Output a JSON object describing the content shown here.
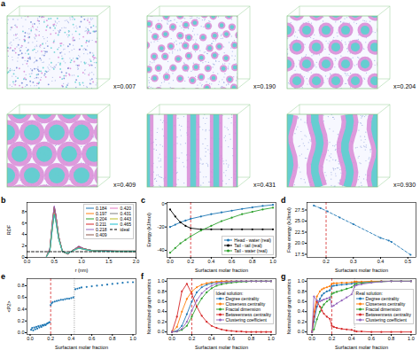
{
  "chart_data": [
    {
      "type": "snapshots",
      "title": "a",
      "labels": [
        "x=0.007",
        "x=0.190",
        "x=0.204",
        "x=0.409",
        "x=0.431",
        "x=0.930"
      ]
    },
    {
      "type": "line",
      "title": "b",
      "x_label": "r (nm)",
      "y_label": "RDF",
      "x": [
        0,
        0.35,
        0.42,
        0.47,
        0.5,
        0.53,
        0.58,
        0.65,
        0.75,
        0.85,
        0.95,
        1.05,
        1.2,
        1.4,
        1.6,
        1.8,
        2.0
      ],
      "series": [
        {
          "name": "0.184",
          "color": "#1f77b4",
          "line_style": "solid",
          "values": [
            0,
            0,
            1.4,
            6.2,
            8.5,
            7.1,
            3.6,
            1.1,
            0.6,
            1.3,
            1.8,
            1.5,
            1.2,
            1.15,
            1.1,
            1.1,
            1.1
          ]
        },
        {
          "name": "0.197",
          "color": "#ff7f0e",
          "line_style": "solid",
          "values": [
            0,
            0,
            1.5,
            6.4,
            8.7,
            7.2,
            3.6,
            1.0,
            0.6,
            1.3,
            1.9,
            1.5,
            1.2,
            1.15,
            1.1,
            1.1,
            1.1
          ]
        },
        {
          "name": "0.204",
          "color": "#2ca02c",
          "line_style": "solid",
          "values": [
            0,
            0,
            1.5,
            6.5,
            8.8,
            7.3,
            3.7,
            1.0,
            0.6,
            1.3,
            1.9,
            1.5,
            1.2,
            1.15,
            1.1,
            1.1,
            1.1
          ]
        },
        {
          "name": "0.211",
          "color": "#d62728",
          "line_style": "solid",
          "values": [
            0,
            0,
            1.6,
            6.6,
            8.9,
            7.3,
            3.7,
            1.0,
            0.6,
            1.3,
            1.9,
            1.5,
            1.2,
            1.15,
            1.1,
            1.1,
            1.1
          ]
        },
        {
          "name": "0.218",
          "color": "#9467bd",
          "line_style": "solid",
          "values": [
            0,
            0,
            1.6,
            6.7,
            9.0,
            7.4,
            3.7,
            1.0,
            0.6,
            1.3,
            2.0,
            1.5,
            1.2,
            1.15,
            1.1,
            1.1,
            1.1
          ]
        },
        {
          "name": "0.409",
          "color": "#8c564b",
          "line_style": "solid",
          "values": [
            0,
            0,
            1.3,
            5.8,
            7.9,
            6.6,
            3.4,
            1.0,
            0.7,
            1.3,
            1.7,
            1.4,
            1.2,
            1.1,
            1.1,
            1.05,
            1.05
          ]
        },
        {
          "name": "0.420",
          "color": "#e377c2",
          "line_style": "solid",
          "values": [
            0,
            0,
            1.3,
            5.7,
            7.8,
            6.5,
            3.4,
            1.0,
            0.7,
            1.3,
            1.7,
            1.4,
            1.2,
            1.1,
            1.1,
            1.05,
            1.05
          ]
        },
        {
          "name": "0.431",
          "color": "#7f7f7f",
          "line_style": "solid",
          "values": [
            0,
            0,
            1.2,
            5.6,
            7.7,
            6.4,
            3.3,
            1.0,
            0.7,
            1.3,
            1.7,
            1.4,
            1.2,
            1.1,
            1.1,
            1.05,
            1.05
          ]
        },
        {
          "name": "0.443",
          "color": "#bcbd22",
          "line_style": "solid",
          "values": [
            0,
            0,
            1.2,
            5.5,
            7.6,
            6.3,
            3.3,
            1.0,
            0.7,
            1.2,
            1.6,
            1.4,
            1.15,
            1.1,
            1.05,
            1.05,
            1.05
          ]
        },
        {
          "name": "0.465",
          "color": "#17becf",
          "line_style": "solid",
          "values": [
            0,
            0,
            1.2,
            5.4,
            7.5,
            6.2,
            3.2,
            1.0,
            0.7,
            1.2,
            1.6,
            1.4,
            1.15,
            1.1,
            1.05,
            1.05,
            1.05
          ]
        },
        {
          "name": "ideal",
          "color": "#000000",
          "line_style": "dashed",
          "values": [
            1,
            1,
            1,
            1,
            1,
            1,
            1,
            1,
            1,
            1,
            1,
            1,
            1,
            1,
            1,
            1,
            1
          ]
        }
      ],
      "xlim": [
        0,
        2.0
      ],
      "ylim": [
        0,
        9.6
      ],
      "xticks": [
        {
          "value": 0,
          "label": "0.0"
        },
        0.5,
        {
          "value": 1,
          "label": "1.0"
        },
        1.5,
        {
          "value": 2,
          "label": "2.0"
        }
      ],
      "yticks": [
        0,
        2,
        4,
        6,
        8
      ],
      "legend": "upper right"
    },
    {
      "type": "line",
      "title": "c",
      "x_label": "Surfactant molar fraction",
      "y_label": "Energy (kJ/mol)",
      "x": [
        0,
        0.05,
        0.1,
        0.15,
        0.2,
        0.3,
        0.4,
        0.5,
        0.6,
        0.7,
        0.8,
        0.9,
        1.0
      ],
      "series": [
        {
          "name": "Head - water (real)",
          "color": "#1f77b4",
          "marker": "dot",
          "line_style": "solid",
          "values": [
            -20,
            -18,
            -16,
            -14.5,
            -13,
            -11,
            -9,
            -7.5,
            -6,
            -4.5,
            -3.2,
            -2,
            -1
          ]
        },
        {
          "name": "Tail - tail (real)",
          "color": "#000000",
          "marker": "dot",
          "line_style": "solid",
          "values": [
            -5,
            -11,
            -16,
            -19,
            -21,
            -22,
            -22,
            -22,
            -22,
            -22,
            -22,
            -22,
            -22
          ]
        },
        {
          "name": "Tail - water (real)",
          "color": "#2ca02c",
          "marker": "dot",
          "line_style": "solid",
          "values": [
            -42,
            -38,
            -34,
            -31,
            -28,
            -23,
            -19,
            -15,
            -12,
            -9,
            -7,
            -5,
            -3.5
          ]
        }
      ],
      "xlim": [
        -0.03,
        1.03
      ],
      "ylim": [
        -46,
        1
      ],
      "xticks": [
        {
          "value": 0,
          "label": "0.0"
        },
        0.2,
        0.4,
        0.6,
        0.8,
        {
          "value": 1,
          "label": "1.0"
        }
      ],
      "yticks": [
        -40,
        -20,
        0
      ],
      "vlines": [
        {
          "x": 0.2,
          "color": "#d62728",
          "line_style": "dashed"
        }
      ],
      "legend": "lower right"
    },
    {
      "type": "line",
      "title": "d",
      "x_label": "Surfactant molar fraction",
      "y_label": "Free energy (kJ/mol)",
      "x": [
        0.155,
        0.18,
        0.205,
        0.25,
        0.3,
        0.4,
        0.43,
        0.44,
        0.51
      ],
      "series": [
        {
          "color": "#1f77b4",
          "marker": "dot",
          "line_style": "dashed",
          "values": [
            28.5,
            27.9,
            27.2,
            25.8,
            24.3,
            21.2,
            20.6,
            20.3,
            17.4
          ]
        }
      ],
      "xlim": [
        0.13,
        0.53
      ],
      "ylim": [
        16.8,
        29.2
      ],
      "xticks": [
        0.2,
        0.3,
        0.4,
        0.5
      ],
      "yticks": [
        17.5,
        {
          "value": 20,
          "label": "20.0"
        },
        22.5,
        {
          "value": 25,
          "label": "25.0"
        },
        27.5
      ],
      "vlines": [
        {
          "x": 0.2,
          "color": "#d62728",
          "line_style": "dashed"
        }
      ]
    },
    {
      "type": "scatter",
      "title": "e",
      "x_label": "Surfactant molar fraction",
      "y_label": "<P2>",
      "x": [
        0.01,
        0.02,
        0.03,
        0.04,
        0.05,
        0.06,
        0.07,
        0.08,
        0.09,
        0.1,
        0.11,
        0.12,
        0.13,
        0.14,
        0.15,
        0.16,
        0.17,
        0.18,
        0.19,
        0.2,
        0.21,
        0.22,
        0.24,
        0.26,
        0.28,
        0.3,
        0.32,
        0.34,
        0.36,
        0.38,
        0.4,
        0.42,
        0.44,
        0.46,
        0.48,
        0.5,
        0.55,
        0.6,
        0.65,
        0.7,
        0.75,
        0.8,
        0.85,
        0.9,
        0.95,
        1.0
      ],
      "series": [
        {
          "color": "#1f77b4",
          "marker": "dot",
          "values": [
            0.05,
            0.08,
            0.04,
            0.09,
            0.06,
            0.1,
            0.07,
            0.11,
            0.09,
            0.12,
            0.1,
            0.13,
            0.12,
            0.14,
            0.13,
            0.15,
            0.16,
            0.17,
            0.18,
            0.47,
            0.5,
            0.52,
            0.53,
            0.54,
            0.55,
            0.56,
            0.56,
            0.57,
            0.58,
            0.58,
            0.59,
            0.6,
            0.74,
            0.75,
            0.76,
            0.77,
            0.78,
            0.79,
            0.8,
            0.81,
            0.82,
            0.83,
            0.84,
            0.85,
            0.86,
            0.86
          ]
        }
      ],
      "xlim": [
        -0.03,
        1.03
      ],
      "ylim": [
        -0.03,
        0.92
      ],
      "xticks": [
        {
          "value": 0,
          "label": "0.0"
        },
        0.2,
        0.4,
        0.6,
        0.8,
        {
          "value": 1,
          "label": "1.0"
        }
      ],
      "yticks": [
        {
          "value": 0,
          "label": "0.0"
        },
        0.2,
        0.4,
        0.6,
        0.8
      ],
      "vlines": [
        {
          "x": 0.2,
          "color": "#d62728",
          "line_style": "dashed"
        },
        {
          "x": 0.43,
          "color": "#7f7f7f",
          "line_style": "dotted"
        }
      ]
    },
    {
      "type": "line",
      "title": "f",
      "x_label": "Surfactant molar fraction",
      "y_label": "Normalized graph metrics",
      "legend_title": "Ideal solution:",
      "x": [
        0,
        0.05,
        0.1,
        0.15,
        0.2,
        0.25,
        0.3,
        0.35,
        0.4,
        0.45,
        0.5,
        0.55,
        0.6,
        0.65,
        0.7,
        0.75,
        0.8,
        0.85,
        0.9,
        0.95,
        1.0
      ],
      "series": [
        {
          "name": "Degree centrality",
          "color": "#1f77b4",
          "marker": "dot",
          "line_style": "solid",
          "values": [
            0,
            0.02,
            0.12,
            0.35,
            0.6,
            0.78,
            0.88,
            0.93,
            0.96,
            0.98,
            0.99,
            1,
            1,
            1,
            1,
            1,
            1,
            1,
            1,
            1,
            1
          ]
        },
        {
          "name": "Closeness centrality",
          "color": "#ff7f0e",
          "marker": "dot",
          "line_style": "solid",
          "values": [
            0,
            0.1,
            0.4,
            0.65,
            0.8,
            0.88,
            0.93,
            0.96,
            0.98,
            0.99,
            1,
            1,
            1,
            1,
            1,
            1,
            1,
            1,
            1,
            1,
            1
          ]
        },
        {
          "name": "Fractal dimension",
          "color": "#2ca02c",
          "marker": "dot",
          "line_style": "solid",
          "values": [
            0,
            0.01,
            0.04,
            0.12,
            0.3,
            0.5,
            0.66,
            0.78,
            0.86,
            0.91,
            0.94,
            0.96,
            0.97,
            0.98,
            0.99,
            0.99,
            1,
            1,
            1,
            1,
            1
          ]
        },
        {
          "name": "Betweenness centrality",
          "color": "#d62728",
          "marker": "dot",
          "line_style": "solid",
          "values": [
            0,
            0.3,
            0.8,
            0.95,
            0.75,
            0.5,
            0.32,
            0.2,
            0.12,
            0.08,
            0.05,
            0.03,
            0.02,
            0.01,
            0.01,
            0,
            0,
            0,
            0,
            0,
            0
          ]
        },
        {
          "name": "Clustering coefficient",
          "color": "#9467bd",
          "marker": "dot",
          "line_style": "solid",
          "values": [
            0,
            0.01,
            0.06,
            0.2,
            0.42,
            0.62,
            0.76,
            0.85,
            0.91,
            0.95,
            0.97,
            0.98,
            0.99,
            1,
            1,
            1,
            1,
            1,
            1,
            1,
            1
          ]
        }
      ],
      "xlim": [
        -0.05,
        1.05
      ],
      "ylim": [
        -0.05,
        1.05
      ],
      "xticks": [
        {
          "value": 0,
          "label": "0.0"
        },
        0.2,
        0.4,
        0.6,
        0.8,
        {
          "value": 1,
          "label": "1.0"
        }
      ],
      "yticks": [
        {
          "value": 0,
          "label": "0.0"
        },
        0.2,
        0.4,
        0.6,
        0.8,
        {
          "value": 1,
          "label": "1.0"
        }
      ],
      "vlines": [
        {
          "x": 0.2,
          "color": "#d62728",
          "line_style": "dashed"
        }
      ],
      "legend": "center right"
    },
    {
      "type": "line",
      "title": "g",
      "x_label": "Surfactant molar fraction",
      "y_label": "Normalized graph metrics",
      "legend_title": "Real solution:",
      "x": [
        0,
        0.02,
        0.05,
        0.08,
        0.1,
        0.12,
        0.15,
        0.18,
        0.2,
        0.22,
        0.25,
        0.3,
        0.35,
        0.4,
        0.43,
        0.45,
        0.5,
        0.6,
        0.7,
        0.8,
        0.9,
        1.0
      ],
      "series": [
        {
          "name": "Degree centrality",
          "color": "#1f77b4",
          "marker": "dot",
          "line_style": "solid",
          "values": [
            0,
            0.2,
            0.5,
            0.65,
            0.72,
            0.76,
            0.8,
            0.82,
            0.9,
            0.91,
            0.92,
            0.93,
            0.94,
            0.95,
            0.97,
            0.98,
            0.98,
            0.99,
            1,
            1,
            1,
            1
          ]
        },
        {
          "name": "Closeness centrality",
          "color": "#ff7f0e",
          "marker": "dot",
          "line_style": "solid",
          "values": [
            0,
            0.4,
            0.7,
            0.8,
            0.84,
            0.86,
            0.88,
            0.9,
            0.95,
            0.96,
            0.96,
            0.97,
            0.97,
            0.98,
            0.99,
            0.99,
            0.99,
            1,
            1,
            1,
            1,
            1
          ]
        },
        {
          "name": "Fractal dimension",
          "color": "#2ca02c",
          "marker": "dot",
          "line_style": "solid",
          "values": [
            0,
            0.05,
            0.25,
            0.4,
            0.48,
            0.54,
            0.6,
            0.64,
            0.75,
            0.77,
            0.79,
            0.82,
            0.85,
            0.88,
            0.93,
            0.95,
            0.96,
            0.98,
            0.99,
            1,
            1,
            1
          ]
        },
        {
          "name": "Betweenness centrality",
          "color": "#d62728",
          "marker": "dot",
          "line_style": "solid",
          "values": [
            0,
            0.3,
            0.6,
            0.5,
            0.42,
            0.36,
            0.3,
            0.26,
            0.12,
            0.1,
            0.08,
            0.06,
            0.05,
            0.04,
            0.02,
            0.01,
            0.01,
            0,
            0,
            0,
            0,
            0
          ]
        },
        {
          "name": "Clustering coefficient",
          "color": "#9467bd",
          "marker": "dot",
          "line_style": "solid",
          "values": [
            0,
            0.7,
            0.62,
            0.6,
            0.62,
            0.64,
            0.66,
            0.68,
            0.5,
            0.52,
            0.56,
            0.62,
            0.68,
            0.74,
            0.9,
            0.92,
            0.94,
            0.97,
            0.99,
            1,
            1,
            1
          ]
        }
      ],
      "xlim": [
        -0.05,
        1.05
      ],
      "ylim": [
        -0.05,
        1.05
      ],
      "xticks": [
        {
          "value": 0,
          "label": "0.0"
        },
        0.2,
        0.4,
        0.6,
        0.8,
        {
          "value": 1,
          "label": "1.0"
        }
      ],
      "yticks": [
        {
          "value": 0,
          "label": "0.0"
        },
        0.2,
        0.4,
        0.6,
        0.8,
        {
          "value": 1,
          "label": "1.0"
        }
      ],
      "vlines": [
        {
          "x": 0.2,
          "color": "#d62728",
          "line_style": "dashed"
        },
        {
          "x": 0.43,
          "color": "#7f7f7f",
          "line_style": "dotted"
        }
      ],
      "legend": "center right"
    }
  ]
}
